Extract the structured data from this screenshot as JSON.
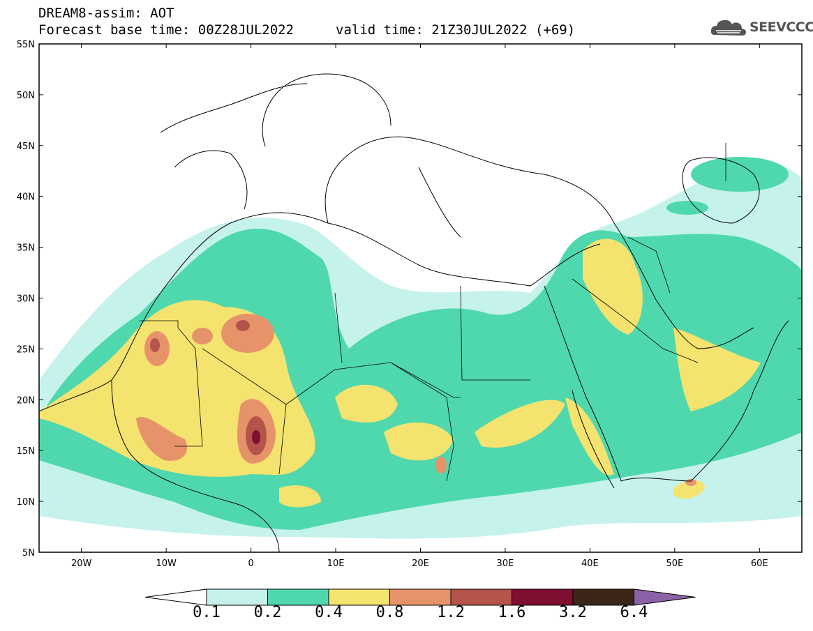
{
  "header": {
    "line1": "DREAM8-assim: AOT",
    "line2": "Forecast base time: 00Z28JUL2022",
    "line3": "valid time: 21Z30JUL2022 (+69)"
  },
  "logo": {
    "text": "SEEVCCC",
    "icon": "cloud-icon"
  },
  "map": {
    "projection": "equirectangular",
    "lon_range": [
      -25,
      65
    ],
    "lat_range": [
      5,
      55
    ],
    "lat_ticks": [
      "5N",
      "10N",
      "15N",
      "20N",
      "25N",
      "30N",
      "35N",
      "40N",
      "45N",
      "50N",
      "55N"
    ],
    "lon_ticks": [
      "20W",
      "10W",
      "0",
      "10E",
      "20E",
      "30E",
      "40E",
      "50E",
      "60E"
    ],
    "variable": "Aerosol optical thickness (AOT)"
  },
  "legend": {
    "levels": [
      "0.1",
      "0.2",
      "0.4",
      "0.8",
      "1.2",
      "1.6",
      "3.2",
      "6.4"
    ],
    "colors": [
      "#c6f2ec",
      "#4fd8ad",
      "#f4e36e",
      "#e7936a",
      "#b4544a",
      "#7f0f30",
      "#3b2618",
      "#8b62a5"
    ],
    "under_color": "#ffffff"
  }
}
